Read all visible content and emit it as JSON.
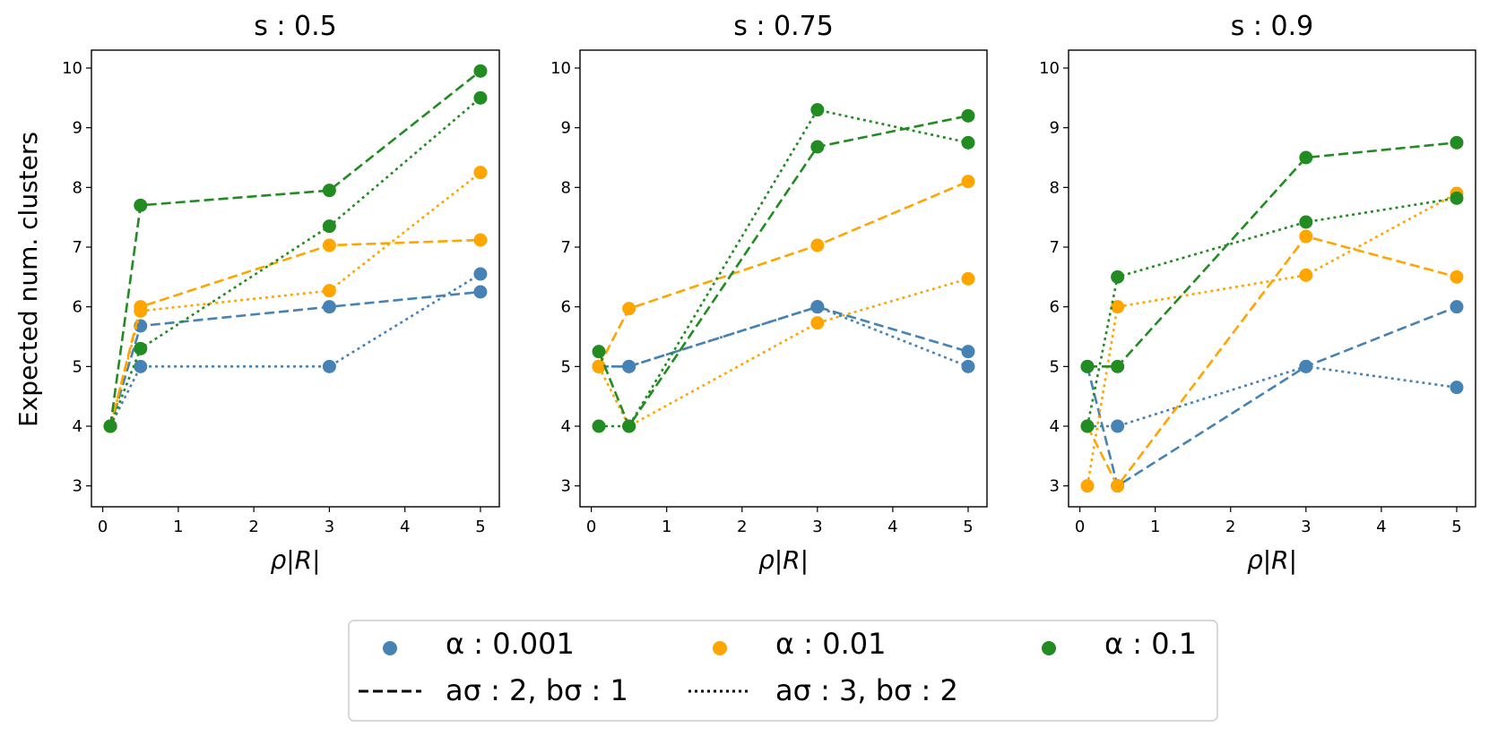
{
  "figure": {
    "ylabel": "Expected num. clusters",
    "xlabel": "ρ|R|"
  },
  "legend": {
    "alpha_entries": [
      {
        "label": "α :  0.001",
        "color": "#4682b4"
      },
      {
        "label": "α :  0.01",
        "color": "#ffa500"
      },
      {
        "label": "α :  0.1",
        "color": "#228b22"
      }
    ],
    "style_entries": [
      {
        "label": "aσ : 2,  bσ : 1",
        "dash": "dashed"
      },
      {
        "label": "aσ : 3,  bσ : 2",
        "dash": "dotted"
      }
    ]
  },
  "chart_data": [
    {
      "type": "line",
      "title": "s :  0.5",
      "xlabel": "ρ|R|",
      "ylabel": "Expected num. clusters",
      "xlim": [
        -0.15,
        5.25
      ],
      "ylim": [
        2.65,
        10.3
      ],
      "xticks": [
        "0",
        "1",
        "2",
        "3",
        "4",
        "5"
      ],
      "yticks": [
        "3",
        "4",
        "5",
        "6",
        "7",
        "8",
        "9",
        "10"
      ],
      "x": [
        0.1,
        0.5,
        3,
        5
      ],
      "series": [
        {
          "name": "α :  0.001 dashed",
          "color": "#4682b4",
          "style": "dashed",
          "values": [
            4,
            5.68,
            6,
            6.25
          ]
        },
        {
          "name": "α :  0.001 dotted",
          "color": "#4682b4",
          "style": "dotted",
          "values": [
            4,
            5,
            5,
            6.55
          ]
        },
        {
          "name": "α :  0.01 dashed",
          "color": "#ffa500",
          "style": "dashed",
          "values": [
            4,
            6,
            7.03,
            7.12
          ]
        },
        {
          "name": "α :  0.01 dotted",
          "color": "#ffa500",
          "style": "dotted",
          "values": [
            4,
            5.93,
            6.27,
            8.25
          ]
        },
        {
          "name": "α :  0.1 dashed",
          "color": "#228b22",
          "style": "dashed",
          "values": [
            4,
            7.7,
            7.95,
            9.95
          ]
        },
        {
          "name": "α :  0.1 dotted",
          "color": "#228b22",
          "style": "dotted",
          "values": [
            4,
            5.3,
            7.35,
            9.5
          ]
        }
      ]
    },
    {
      "type": "line",
      "title": "s :  0.75",
      "xlabel": "ρ|R|",
      "ylabel": "",
      "xlim": [
        -0.15,
        5.25
      ],
      "ylim": [
        2.65,
        10.3
      ],
      "xticks": [
        "0",
        "1",
        "2",
        "3",
        "4",
        "5"
      ],
      "yticks": [
        "3",
        "4",
        "5",
        "6",
        "7",
        "8",
        "9",
        "10"
      ],
      "x": [
        0.1,
        0.5,
        3,
        5
      ],
      "series": [
        {
          "name": "α :  0.001 dashed",
          "color": "#4682b4",
          "style": "dashed",
          "values": [
            5,
            5,
            6,
            5.25
          ]
        },
        {
          "name": "α :  0.001 dotted",
          "color": "#4682b4",
          "style": "dotted",
          "values": [
            5,
            5,
            6,
            5
          ]
        },
        {
          "name": "α :  0.01 dashed",
          "color": "#ffa500",
          "style": "dashed",
          "values": [
            5,
            5.97,
            7.03,
            8.1
          ]
        },
        {
          "name": "α :  0.01 dotted",
          "color": "#ffa500",
          "style": "dotted",
          "values": [
            5,
            4,
            5.73,
            6.47
          ]
        },
        {
          "name": "α :  0.1 dashed",
          "color": "#228b22",
          "style": "dashed",
          "values": [
            5.25,
            4,
            8.68,
            9.2
          ]
        },
        {
          "name": "α :  0.1 dotted",
          "color": "#228b22",
          "style": "dotted",
          "values": [
            4,
            4,
            9.3,
            8.75
          ]
        }
      ]
    },
    {
      "type": "line",
      "title": "s :  0.9",
      "xlabel": "ρ|R|",
      "ylabel": "",
      "xlim": [
        -0.15,
        5.25
      ],
      "ylim": [
        2.65,
        10.3
      ],
      "xticks": [
        "0",
        "1",
        "2",
        "3",
        "4",
        "5"
      ],
      "yticks": [
        "3",
        "4",
        "5",
        "6",
        "7",
        "8",
        "9",
        "10"
      ],
      "x": [
        0.1,
        0.5,
        3,
        5
      ],
      "series": [
        {
          "name": "α :  0.001 dashed",
          "color": "#4682b4",
          "style": "dashed",
          "values": [
            5,
            3,
            5,
            6
          ]
        },
        {
          "name": "α :  0.001 dotted",
          "color": "#4682b4",
          "style": "dotted",
          "values": [
            4,
            4,
            5,
            4.65
          ]
        },
        {
          "name": "α :  0.01 dashed",
          "color": "#ffa500",
          "style": "dashed",
          "values": [
            4,
            3,
            7.18,
            6.5
          ]
        },
        {
          "name": "α :  0.01 dotted",
          "color": "#ffa500",
          "style": "dotted",
          "values": [
            3,
            6,
            6.53,
            7.9
          ]
        },
        {
          "name": "α :  0.1 dashed",
          "color": "#228b22",
          "style": "dashed",
          "values": [
            5,
            5,
            8.5,
            8.75
          ]
        },
        {
          "name": "α :  0.1 dotted",
          "color": "#228b22",
          "style": "dotted",
          "values": [
            4,
            6.5,
            7.42,
            7.82
          ]
        }
      ]
    }
  ]
}
